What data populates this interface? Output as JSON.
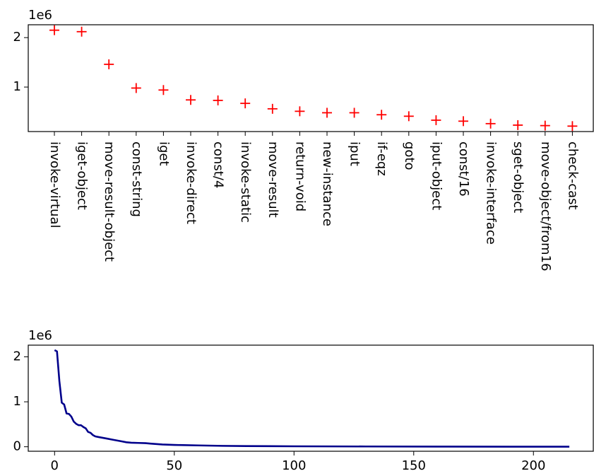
{
  "chart_data": [
    {
      "type": "scatter",
      "marker": "+",
      "color": "#ff0000",
      "offset_label": "1e6",
      "categories": [
        "invoke-virtual",
        "iget-object",
        "move-result-object",
        "const-string",
        "iget",
        "invoke-direct",
        "const/4",
        "invoke-static",
        "move-result",
        "return-void",
        "new-instance",
        "iput",
        "if-eqz",
        "goto",
        "iput-object",
        "const/16",
        "invoke-interface",
        "sget-object",
        "move-object/from16",
        "check-cast"
      ],
      "values": [
        2.15,
        2.12,
        1.46,
        0.98,
        0.94,
        0.74,
        0.73,
        0.67,
        0.56,
        0.51,
        0.48,
        0.48,
        0.44,
        0.41,
        0.33,
        0.31,
        0.26,
        0.23,
        0.22,
        0.21
      ],
      "yticks": [
        1,
        2
      ],
      "ylim": [
        0.1,
        2.26
      ],
      "grid": false
    },
    {
      "type": "line",
      "color": "#00008b",
      "offset_label": "1e6",
      "x": [
        0,
        1,
        2,
        3,
        4,
        5,
        6,
        7,
        8,
        9,
        10,
        11,
        12,
        13,
        14,
        15,
        16,
        17,
        18,
        19,
        20,
        22,
        24,
        26,
        28,
        30,
        32,
        35,
        38,
        40,
        45,
        50,
        60,
        70,
        80,
        100,
        130,
        160,
        190,
        215
      ],
      "y": [
        2.15,
        2.12,
        1.46,
        0.98,
        0.94,
        0.74,
        0.73,
        0.67,
        0.56,
        0.51,
        0.48,
        0.48,
        0.44,
        0.41,
        0.33,
        0.31,
        0.26,
        0.23,
        0.22,
        0.21,
        0.2,
        0.18,
        0.16,
        0.14,
        0.12,
        0.1,
        0.09,
        0.085,
        0.08,
        0.07,
        0.05,
        0.04,
        0.03,
        0.02,
        0.015,
        0.01,
        0.006,
        0.004,
        0.002,
        0.001
      ],
      "xticks": [
        0,
        50,
        100,
        150,
        200
      ],
      "yticks": [
        0,
        1,
        2
      ],
      "xlim": [
        -11,
        225
      ],
      "ylim": [
        -0.1,
        2.26
      ],
      "grid": false
    }
  ]
}
